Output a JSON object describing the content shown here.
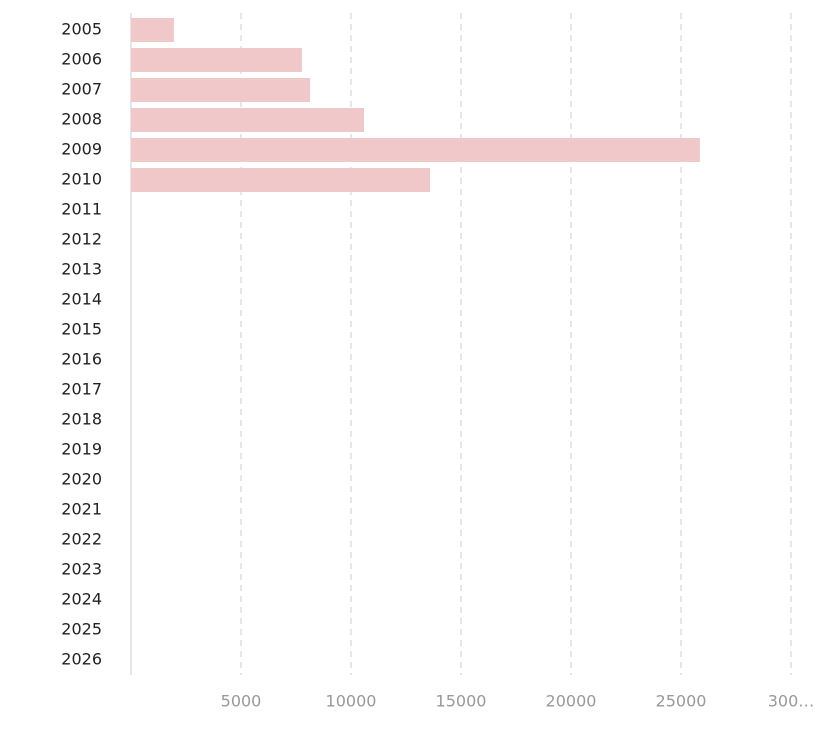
{
  "chart_data": {
    "type": "bar",
    "orientation": "horizontal",
    "categories": [
      "2005",
      "2006",
      "2007",
      "2008",
      "2009",
      "2010",
      "2011",
      "2012",
      "2013",
      "2014",
      "2015",
      "2016",
      "2017",
      "2018",
      "2019",
      "2020",
      "2021",
      "2022",
      "2023",
      "2024",
      "2025",
      "2026"
    ],
    "values": [
      1950,
      7770,
      8140,
      10590,
      25860,
      13590,
      null,
      null,
      null,
      null,
      null,
      null,
      null,
      null,
      null,
      null,
      null,
      null,
      null,
      null,
      null,
      null
    ],
    "color": "#f0c8ca",
    "xlim": [
      0,
      30000
    ],
    "xticks": [
      5000,
      10000,
      15000,
      20000,
      25000,
      {
        "value": 30000,
        "label": "300…"
      }
    ],
    "grid": true
  }
}
